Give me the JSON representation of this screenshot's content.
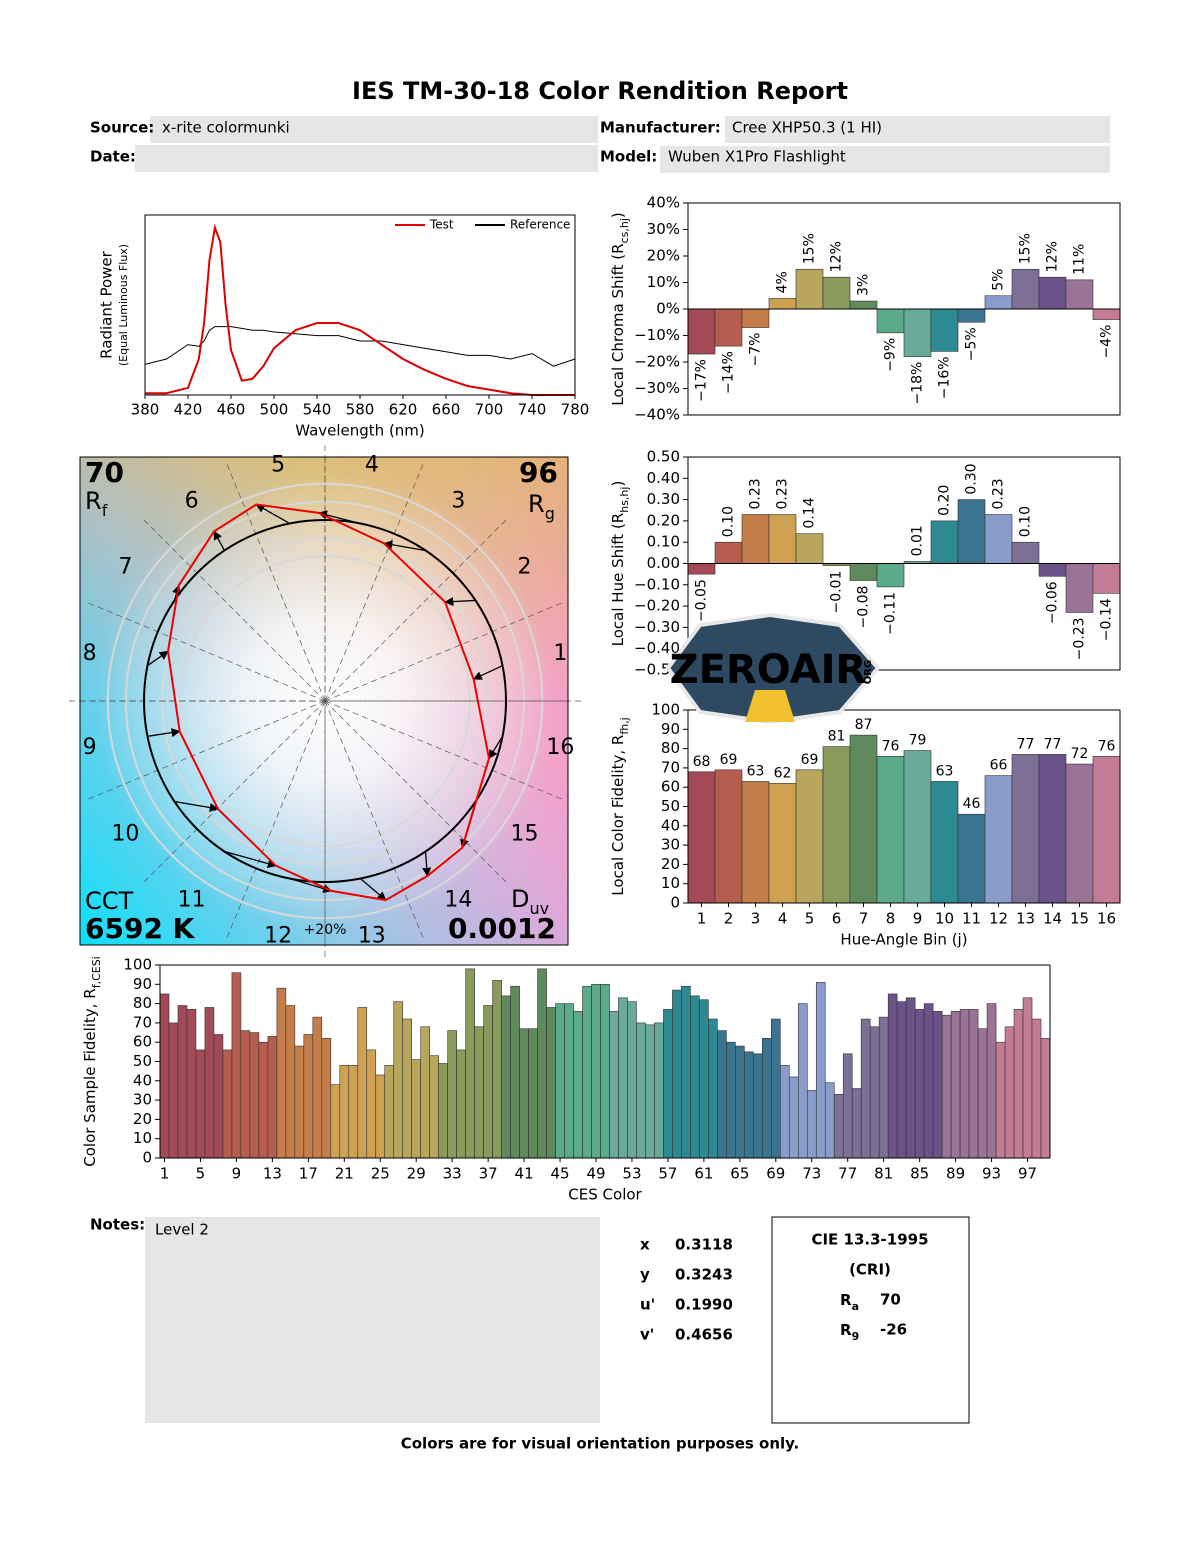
{
  "header": {
    "title": "IES TM-30-18 Color Rendition Report",
    "source_label": "Source:",
    "source": "x-rite colormunki",
    "manufacturer_label": "Manufacturer:",
    "manufacturer": "Cree XHP50.3 (1 HI)",
    "date_label": "Date:",
    "model_label": "Model:",
    "model": "Wuben X1Pro Flashlight"
  },
  "chart_data": [
    {
      "type": "line",
      "xlabel": "Wavelength (nm)",
      "ylabel": "Radiant Power",
      "ylabel_note": "(Equal Luminous Flux)",
      "x": [
        380,
        400,
        420,
        430,
        435,
        440,
        445,
        450,
        455,
        460,
        470,
        480,
        490,
        500,
        520,
        540,
        560,
        580,
        600,
        620,
        640,
        660,
        680,
        700,
        720,
        740,
        760,
        780
      ],
      "series": [
        {
          "name": "Test",
          "color": "#dd0000",
          "values": [
            0.01,
            0.01,
            0.04,
            0.2,
            0.4,
            0.75,
            0.93,
            0.85,
            0.5,
            0.25,
            0.08,
            0.09,
            0.16,
            0.26,
            0.36,
            0.4,
            0.4,
            0.36,
            0.28,
            0.2,
            0.14,
            0.09,
            0.05,
            0.03,
            0.01,
            0.0,
            0.0,
            0.0
          ]
        },
        {
          "name": "Reference",
          "color": "#000000",
          "values": [
            0.17,
            0.2,
            0.28,
            0.27,
            0.3,
            0.36,
            0.38,
            0.38,
            0.38,
            0.38,
            0.37,
            0.36,
            0.36,
            0.35,
            0.34,
            0.33,
            0.33,
            0.3,
            0.3,
            0.28,
            0.26,
            0.24,
            0.22,
            0.22,
            0.2,
            0.23,
            0.16,
            0.2
          ]
        }
      ],
      "xlim": [
        380,
        780
      ],
      "xticks": [
        380,
        420,
        460,
        500,
        540,
        580,
        620,
        660,
        700,
        740,
        780
      ],
      "ylim": [
        0,
        1
      ],
      "legend": "upper right"
    },
    {
      "type": "vector",
      "rf": {
        "value": 70,
        "symbol": "R",
        "sub": "f"
      },
      "rg": {
        "value": 96,
        "symbol": "R",
        "sub": "g"
      },
      "cct_label": "CCT",
      "cct": "6592 K",
      "duv_symbol": "D",
      "duv_sub": "uv",
      "duv": "0.0012",
      "bins": [
        "1",
        "2",
        "3",
        "4",
        "5",
        "6",
        "7",
        "8",
        "9",
        "10",
        "11",
        "12",
        "13",
        "14",
        "15",
        "16"
      ],
      "ring_label": "+20%",
      "test_color": "#ee0000",
      "reference_color": "#000000"
    },
    {
      "type": "bar",
      "ylabel": {
        "text": "Local Chroma Shift (R",
        "sub": "cs,hj",
        "tail": ")"
      },
      "values": [
        -17,
        -14,
        -7,
        4,
        15,
        12,
        3,
        -9,
        -18,
        -16,
        -5,
        5,
        15,
        12,
        11,
        -4
      ],
      "value_labels": [
        "−17%",
        "−14%",
        "−7%",
        "4%",
        "15%",
        "12%",
        "3%",
        "−9%",
        "−18%",
        "−16%",
        "−5%",
        "5%",
        "15%",
        "12%",
        "11%",
        "−4%"
      ],
      "label_rotate": true,
      "colors": [
        "#a34a56",
        "#b55d4f",
        "#c57d4a",
        "#cfa253",
        "#b8a65c",
        "#8a9a5a",
        "#5f8a5c",
        "#5bab8b",
        "#6aaa9a",
        "#2e8a92",
        "#3a7490",
        "#8a9ccb",
        "#7d7097",
        "#6b5288",
        "#9a7396",
        "#c47b95"
      ],
      "ylim": [
        -40,
        40
      ],
      "yticks": [
        {
          "value": 40,
          "label": "40%"
        },
        {
          "value": 30,
          "label": "30%"
        },
        {
          "value": 20,
          "label": "20%"
        },
        {
          "value": 10,
          "label": "10%"
        },
        {
          "value": 0,
          "label": "0%"
        },
        {
          "value": -10,
          "label": "−10%"
        },
        {
          "value": -20,
          "label": "−20%"
        },
        {
          "value": -30,
          "label": "−30%"
        },
        {
          "value": -40,
          "label": "−40%"
        }
      ]
    },
    {
      "type": "bar",
      "ylabel": {
        "text": "Local Hue Shift (R",
        "sub": "hs,hj",
        "tail": ")"
      },
      "values": [
        -0.05,
        0.1,
        0.23,
        0.23,
        0.14,
        -0.01,
        -0.08,
        -0.11,
        0.01,
        0.2,
        0.3,
        0.23,
        0.1,
        -0.06,
        -0.23,
        -0.14
      ],
      "value_labels": [
        "−0.05",
        "0.10",
        "0.23",
        "0.23",
        "0.14",
        "−0.01",
        "−0.08",
        "−0.11",
        "0.01",
        "0.20",
        "0.30",
        "0.23",
        "0.10",
        "−0.06",
        "−0.23",
        "−0.14"
      ],
      "label_rotate": true,
      "colors": [
        "#a34a56",
        "#b55d4f",
        "#c57d4a",
        "#cfa253",
        "#b8a65c",
        "#8a9a5a",
        "#5f8a5c",
        "#5bab8b",
        "#6aaa9a",
        "#2e8a92",
        "#3a7490",
        "#8a9ccb",
        "#7d7097",
        "#6b5288",
        "#9a7396",
        "#c47b95"
      ],
      "ylim": [
        -0.5,
        0.5
      ],
      "yticks": [
        {
          "value": 0.5,
          "label": "0.50"
        },
        {
          "value": 0.4,
          "label": "0.40"
        },
        {
          "value": 0.3,
          "label": "0.30"
        },
        {
          "value": 0.2,
          "label": "0.20"
        },
        {
          "value": 0.1,
          "label": "0.10"
        },
        {
          "value": 0,
          "label": "0.00"
        },
        {
          "value": -0.1,
          "label": "−0.10"
        },
        {
          "value": -0.2,
          "label": "−0.20"
        },
        {
          "value": -0.3,
          "label": "−0.30"
        },
        {
          "value": -0.4,
          "label": "−0.40"
        },
        {
          "value": -0.5,
          "label": "−0.50"
        }
      ]
    },
    {
      "type": "bar",
      "ylabel": {
        "text": "Local Color Fidelity, R",
        "sub": "fh,j"
      },
      "xlabel": "Hue-Angle Bin (j)",
      "categories": [
        "1",
        "2",
        "3",
        "4",
        "5",
        "6",
        "7",
        "8",
        "9",
        "10",
        "11",
        "12",
        "13",
        "14",
        "15",
        "16"
      ],
      "values": [
        68,
        69,
        63,
        62,
        69,
        81,
        87,
        76,
        79,
        63,
        46,
        66,
        77,
        77,
        72,
        76
      ],
      "data_labels": true,
      "colors": [
        "#a34a56",
        "#b55d4f",
        "#c57d4a",
        "#cfa253",
        "#b8a65c",
        "#8a9a5a",
        "#5f8a5c",
        "#5bab8b",
        "#6aaa9a",
        "#2e8a92",
        "#3a7490",
        "#8a9ccb",
        "#7d7097",
        "#6b5288",
        "#9a7396",
        "#c47b95"
      ],
      "ylim": [
        0,
        100
      ],
      "yticks": [
        0,
        10,
        20,
        30,
        40,
        50,
        60,
        70,
        80,
        90,
        100
      ]
    },
    {
      "type": "bar",
      "ylabel": {
        "text": "Color Sample Fidelity, R",
        "sub": "f,CESi"
      },
      "xlabel": "CES Color",
      "x": [
        1,
        2,
        3,
        4,
        5,
        6,
        7,
        8,
        9,
        10,
        11,
        12,
        13,
        14,
        15,
        16,
        17,
        18,
        19,
        20,
        21,
        22,
        23,
        24,
        25,
        26,
        27,
        28,
        29,
        30,
        31,
        32,
        33,
        34,
        35,
        36,
        37,
        38,
        39,
        40,
        41,
        42,
        43,
        44,
        45,
        46,
        47,
        48,
        49,
        50,
        51,
        52,
        53,
        54,
        55,
        56,
        57,
        58,
        59,
        60,
        61,
        62,
        63,
        64,
        65,
        66,
        67,
        68,
        69,
        70,
        71,
        72,
        73,
        74,
        75,
        76,
        77,
        78,
        79,
        80,
        81,
        82,
        83,
        84,
        85,
        86,
        87,
        88,
        89,
        90,
        91,
        92,
        93,
        94,
        95,
        96,
        97,
        98,
        99
      ],
      "values": [
        85,
        70,
        79,
        77,
        56,
        78,
        64,
        56,
        96,
        66,
        65,
        60,
        63,
        88,
        79,
        58,
        64,
        73,
        62,
        38,
        48,
        48,
        78,
        56,
        43,
        48,
        81,
        72,
        51,
        68,
        53,
        49,
        66,
        56,
        98,
        68,
        79,
        92,
        84,
        89,
        67,
        67,
        98,
        78,
        80,
        80,
        76,
        89,
        90,
        90,
        76,
        83,
        81,
        70,
        69,
        70,
        77,
        87,
        89,
        84,
        82,
        72,
        66,
        60,
        58,
        55,
        54,
        62,
        72,
        48,
        42,
        80,
        35,
        91,
        39,
        33,
        54,
        36,
        72,
        68,
        73,
        85,
        81,
        83,
        77,
        80,
        76,
        74,
        76,
        77,
        77,
        67,
        80,
        60,
        68,
        77,
        83,
        72,
        62
      ],
      "xlim": [
        0.5,
        99.5
      ],
      "xticks": [
        1,
        5,
        9,
        13,
        17,
        21,
        25,
        29,
        33,
        37,
        41,
        45,
        49,
        53,
        57,
        61,
        65,
        69,
        73,
        77,
        81,
        85,
        89,
        93,
        97
      ],
      "ylim": [
        0,
        100
      ],
      "yticks": [
        0,
        10,
        20,
        30,
        40,
        50,
        60,
        70,
        80,
        90,
        100
      ]
    }
  ],
  "notes": {
    "label": "Notes:",
    "text": "Level 2"
  },
  "chromaticity": [
    {
      "label": "x",
      "value": "0.3118"
    },
    {
      "label": "y",
      "value": "0.3243"
    },
    {
      "label": "u'",
      "value": "0.1990"
    },
    {
      "label": "v'",
      "value": "0.4656"
    }
  ],
  "cri": {
    "title": "CIE 13.3-1995",
    "subtitle": "(CRI)",
    "rows": [
      {
        "symbol": "R",
        "sub": "a",
        "value": 70
      },
      {
        "symbol": "R",
        "sub": "9",
        "value": -26
      }
    ]
  },
  "footer": "Colors are for visual orientation purposes only.",
  "watermark": {
    "text": "ZEROAIR",
    "sub": "ORG"
  }
}
